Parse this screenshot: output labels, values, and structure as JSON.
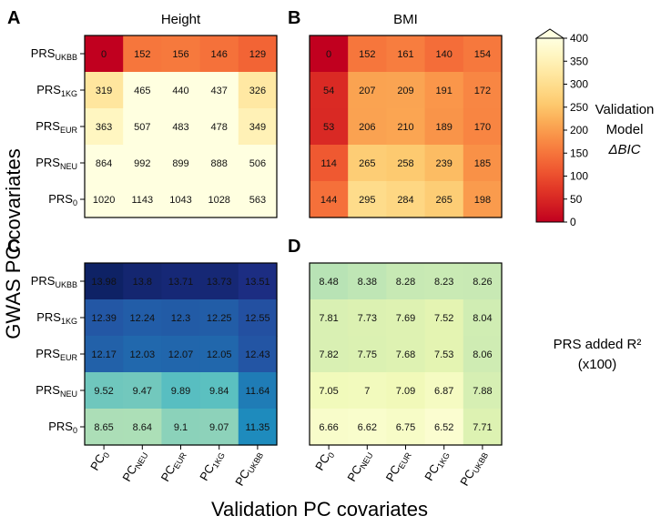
{
  "figure": {
    "ylabel": "GWAS PC covariates",
    "xlabel": "Validation PC covariates",
    "rows": [
      {
        "main": "PRS",
        "sub": "UKBB"
      },
      {
        "main": "PRS",
        "sub": "1KG"
      },
      {
        "main": "PRS",
        "sub": "EUR"
      },
      {
        "main": "PRS",
        "sub": "NEU"
      },
      {
        "main": "PRS",
        "sub": "0"
      }
    ],
    "columns": [
      {
        "main": "PC",
        "sub": "0"
      },
      {
        "main": "PC",
        "sub": "NEU"
      },
      {
        "main": "PC",
        "sub": "EUR"
      },
      {
        "main": "PC",
        "sub": "1KG"
      },
      {
        "main": "PC",
        "sub": "UKBB"
      }
    ],
    "colorbar_bic": {
      "title_lines": [
        "Validation",
        "Model",
        "ΔBIC"
      ],
      "ticks": [
        0,
        50,
        100,
        150,
        200,
        250,
        300,
        350,
        400
      ],
      "range": [
        0,
        400
      ],
      "colors": [
        "#c1001f",
        "#d21d22",
        "#e23827",
        "#ee5530",
        "#f5713a",
        "#f98e46",
        "#fbac56",
        "#fdc86d",
        "#feda88",
        "#ffe9a4",
        "#fff6c2",
        "#ffffe0"
      ]
    },
    "colorbar_r2": {
      "title_lines": [
        "PRS added R²",
        "(x100)"
      ],
      "range": [
        6.3,
        14.2
      ],
      "colors": [
        "#ffffd9",
        "#edf8b1",
        "#c7e9b4",
        "#7fcdbb",
        "#41b6c4",
        "#1d91c0",
        "#225ea8",
        "#253494",
        "#081d58"
      ]
    }
  },
  "chart_data": [
    {
      "type": "heatmap",
      "panel": "A",
      "title": "Height",
      "metric": "Validation Model ΔBIC",
      "rows": [
        "PRS_UKBB",
        "PRS_1KG",
        "PRS_EUR",
        "PRS_NEU",
        "PRS_0"
      ],
      "columns": [
        "PC_0",
        "PC_NEU",
        "PC_EUR",
        "PC_1KG",
        "PC_UKBB"
      ],
      "values": [
        [
          0,
          152,
          156,
          146,
          129
        ],
        [
          319,
          465,
          440,
          437,
          326
        ],
        [
          363,
          507,
          483,
          478,
          349
        ],
        [
          864,
          992,
          899,
          888,
          506
        ],
        [
          1020,
          1143,
          1043,
          1028,
          563
        ]
      ]
    },
    {
      "type": "heatmap",
      "panel": "B",
      "title": "BMI",
      "metric": "Validation Model ΔBIC",
      "rows": [
        "PRS_UKBB",
        "PRS_1KG",
        "PRS_EUR",
        "PRS_NEU",
        "PRS_0"
      ],
      "columns": [
        "PC_0",
        "PC_NEU",
        "PC_EUR",
        "PC_1KG",
        "PC_UKBB"
      ],
      "values": [
        [
          0,
          152,
          161,
          140,
          154
        ],
        [
          54,
          207,
          209,
          191,
          172
        ],
        [
          53,
          206,
          210,
          189,
          170
        ],
        [
          114,
          265,
          258,
          239,
          185
        ],
        [
          144,
          295,
          284,
          265,
          198
        ]
      ]
    },
    {
      "type": "heatmap",
      "panel": "C",
      "title": "",
      "metric": "PRS added R² (x100)",
      "rows": [
        "PRS_UKBB",
        "PRS_1KG",
        "PRS_EUR",
        "PRS_NEU",
        "PRS_0"
      ],
      "columns": [
        "PC_0",
        "PC_NEU",
        "PC_EUR",
        "PC_1KG",
        "PC_UKBB"
      ],
      "values": [
        [
          "13.98",
          "13.8",
          "13.71",
          "13.73",
          "13.51"
        ],
        [
          "12.39",
          "12.24",
          "12.3",
          "12.25",
          "12.55"
        ],
        [
          "12.17",
          "12.03",
          "12.07",
          "12.05",
          "12.43"
        ],
        [
          "9.52",
          "9.47",
          "9.89",
          "9.84",
          "11.64"
        ],
        [
          "8.65",
          "8.64",
          "9.1",
          "9.07",
          "11.35"
        ]
      ]
    },
    {
      "type": "heatmap",
      "panel": "D",
      "title": "",
      "metric": "PRS added R² (x100)",
      "rows": [
        "PRS_UKBB",
        "PRS_1KG",
        "PRS_EUR",
        "PRS_NEU",
        "PRS_0"
      ],
      "columns": [
        "PC_0",
        "PC_NEU",
        "PC_EUR",
        "PC_1KG",
        "PC_UKBB"
      ],
      "values": [
        [
          "8.48",
          "8.38",
          "8.28",
          "8.23",
          "8.26"
        ],
        [
          "7.81",
          "7.73",
          "7.69",
          "7.52",
          "8.04"
        ],
        [
          "7.82",
          "7.75",
          "7.68",
          "7.53",
          "8.06"
        ],
        [
          "7.05",
          "7",
          "7.09",
          "6.87",
          "7.88"
        ],
        [
          "6.66",
          "6.62",
          "6.75",
          "6.52",
          "7.71"
        ]
      ]
    }
  ]
}
